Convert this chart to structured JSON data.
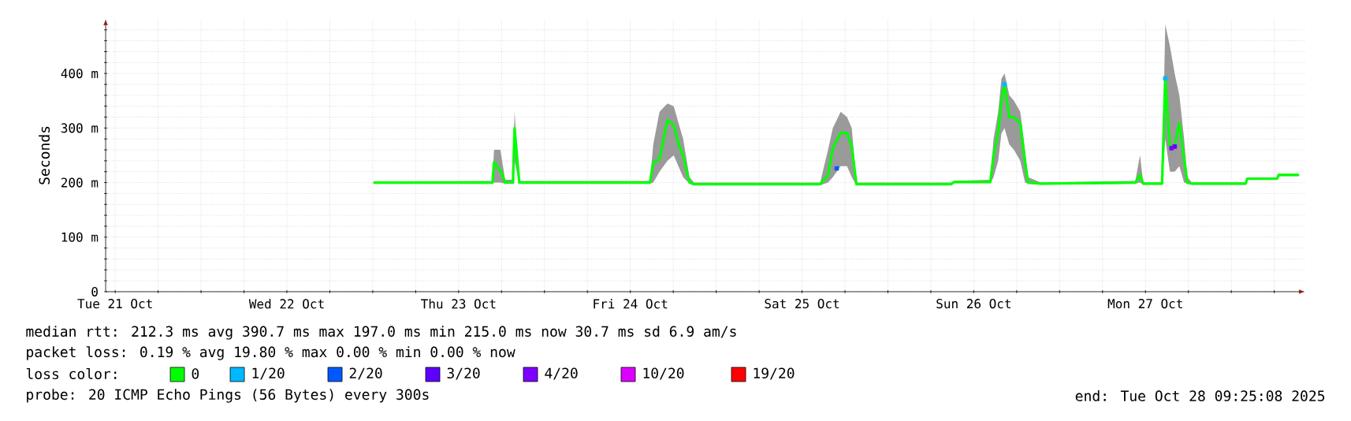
{
  "chart_data": {
    "type": "line",
    "ylabel": "Seconds",
    "legend_title": "loss color:",
    "legend": "bottom",
    "grid": true,
    "xlim": [
      "2025-10-21T10:40",
      "2025-10-28T10:20"
    ],
    "xticks": [
      {
        "value": "2025-10-21T12:00",
        "label": "Tue 21 Oct"
      },
      {
        "value": "2025-10-21T18:00",
        "label": null
      },
      {
        "value": "2025-10-22T00:00",
        "label": null
      },
      {
        "value": "2025-10-22T06:00",
        "label": null
      },
      {
        "value": "2025-10-22T12:00",
        "label": "Wed 22 Oct"
      },
      {
        "value": "2025-10-22T18:00",
        "label": null
      },
      {
        "value": "2025-10-23T00:00",
        "label": null
      },
      {
        "value": "2025-10-23T06:00",
        "label": null
      },
      {
        "value": "2025-10-23T12:00",
        "label": "Thu 23 Oct"
      },
      {
        "value": "2025-10-23T18:00",
        "label": null
      },
      {
        "value": "2025-10-24T00:00",
        "label": null
      },
      {
        "value": "2025-10-24T06:00",
        "label": null
      },
      {
        "value": "2025-10-24T12:00",
        "label": "Fri 24 Oct"
      },
      {
        "value": "2025-10-24T18:00",
        "label": null
      },
      {
        "value": "2025-10-25T00:00",
        "label": null
      },
      {
        "value": "2025-10-25T06:00",
        "label": null
      },
      {
        "value": "2025-10-25T12:00",
        "label": "Sat 25 Oct"
      },
      {
        "value": "2025-10-25T18:00",
        "label": null
      },
      {
        "value": "2025-10-26T00:00",
        "label": null
      },
      {
        "value": "2025-10-26T06:00",
        "label": null
      },
      {
        "value": "2025-10-26T12:00",
        "label": "Sun 26 Oct"
      },
      {
        "value": "2025-10-26T18:00",
        "label": null
      },
      {
        "value": "2025-10-27T00:00",
        "label": null
      },
      {
        "value": "2025-10-27T06:00",
        "label": null
      },
      {
        "value": "2025-10-27T12:00",
        "label": "Mon 27 Oct"
      },
      {
        "value": "2025-10-27T18:00",
        "label": null
      },
      {
        "value": "2025-10-28T00:00",
        "label": null
      },
      {
        "value": "2025-10-28T06:00",
        "label": null
      }
    ],
    "ylim": [
      0,
      500
    ],
    "yticks": [
      0,
      {
        "value": 20,
        "label": null
      },
      {
        "value": 40,
        "label": null
      },
      {
        "value": 60,
        "label": null
      },
      {
        "value": 80,
        "label": null
      },
      {
        "value": 100,
        "label": "100 m"
      },
      {
        "value": 120,
        "label": null
      },
      {
        "value": 140,
        "label": null
      },
      {
        "value": 160,
        "label": null
      },
      {
        "value": 180,
        "label": null
      },
      {
        "value": 200,
        "label": "200 m"
      },
      {
        "value": 220,
        "label": null
      },
      {
        "value": 240,
        "label": null
      },
      {
        "value": 260,
        "label": null
      },
      {
        "value": 280,
        "label": null
      },
      {
        "value": 300,
        "label": "300 m"
      },
      {
        "value": 320,
        "label": null
      },
      {
        "value": 340,
        "label": null
      },
      {
        "value": 360,
        "label": null
      },
      {
        "value": 380,
        "label": null
      },
      {
        "value": 400,
        "label": "400 m"
      },
      {
        "value": 420,
        "label": null
      },
      {
        "value": 440,
        "label": null
      },
      {
        "value": 460,
        "label": null
      },
      {
        "value": 480,
        "label": null
      }
    ],
    "series": [
      {
        "name": "0",
        "color": "#00ff00",
        "marker": "none",
        "x": [
          "2025-10-23T00:13",
          "2025-10-23T16:44",
          "2025-10-23T16:57",
          "2025-10-23T17:50",
          "2025-10-23T18:30",
          "2025-10-23T19:36",
          "2025-10-23T19:49",
          "2025-10-23T20:29",
          "2025-10-24T14:45",
          "2025-10-24T15:12",
          "2025-10-24T16:05",
          "2025-10-24T17:11",
          "2025-10-24T18:04",
          "2025-10-24T18:43",
          "2025-10-24T19:23",
          "2025-10-24T20:16",
          "2025-10-24T20:55",
          "2025-10-25T14:32",
          "2025-10-25T15:38",
          "2025-10-25T16:18",
          "2025-10-25T17:24",
          "2025-10-25T18:17",
          "2025-10-25T18:57",
          "2025-10-25T19:36",
          "2025-10-26T08:49",
          "2025-10-26T09:15",
          "2025-10-26T14:19",
          "2025-10-26T14:46",
          "2025-10-26T15:25",
          "2025-10-26T15:52",
          "2025-10-26T16:18",
          "2025-10-26T16:58",
          "2025-10-26T17:37",
          "2025-10-26T18:30",
          "2025-10-26T19:10",
          "2025-10-26T19:36",
          "2025-10-26T21:22",
          "2025-10-27T10:35",
          "2025-10-27T11:14",
          "2025-10-27T11:41",
          "2025-10-27T14:19",
          "2025-10-27T14:46",
          "2025-10-27T15:25",
          "2025-10-27T16:05",
          "2025-10-27T16:44",
          "2025-10-27T17:24",
          "2025-10-27T17:51",
          "2025-10-27T18:30",
          "2025-10-28T02:00",
          "2025-10-28T02:13",
          "2025-10-28T06:24",
          "2025-10-28T06:37",
          "2025-10-28T09:20"
        ],
        "values": [
          200,
          200,
          237,
          223,
          200,
          200,
          300,
          200,
          200,
          237,
          243,
          314,
          306,
          271,
          249,
          200,
          197,
          197,
          214,
          263,
          291,
          291,
          266,
          197,
          197,
          201,
          201,
          251,
          291,
          351,
          380,
          320,
          320,
          309,
          237,
          200,
          198,
          200,
          214,
          198,
          198,
          391,
          266,
          266,
          309,
          243,
          200,
          198,
          198,
          207,
          207,
          214,
          214
        ],
        "lower": [
          198,
          198,
          200,
          200,
          198,
          198,
          240,
          198,
          198,
          200,
          220,
          240,
          250,
          230,
          210,
          198,
          195,
          195,
          200,
          210,
          230,
          230,
          210,
          195,
          195,
          199,
          199,
          210,
          240,
          290,
          300,
          270,
          260,
          240,
          200,
          198,
          196,
          198,
          200,
          196,
          196,
          280,
          220,
          220,
          230,
          200,
          198,
          196,
          196,
          205,
          205,
          212,
          212
        ],
        "upper": [
          202,
          203,
          260,
          260,
          205,
          205,
          330,
          203,
          203,
          270,
          330,
          345,
          340,
          310,
          280,
          210,
          200,
          200,
          260,
          300,
          330,
          320,
          300,
          200,
          200,
          203,
          205,
          280,
          330,
          390,
          400,
          360,
          350,
          330,
          260,
          210,
          200,
          203,
          250,
          200,
          200,
          490,
          450,
          400,
          360,
          280,
          210,
          200,
          200,
          209,
          209,
          216,
          216
        ]
      },
      {
        "name": "1/20",
        "color": "#00b8ff",
        "type": "scatter",
        "marker": "square",
        "x": [
          "2025-10-26T16:18",
          "2025-10-27T14:46"
        ],
        "values": [
          380,
          391
        ]
      },
      {
        "name": "2/20",
        "color": "#0059ff",
        "type": "scatter",
        "marker": "square",
        "x": [
          "2025-10-25T16:51"
        ],
        "values": [
          226
        ]
      },
      {
        "name": "3/20",
        "color": "#5e00ff",
        "type": "scatter",
        "marker": "square",
        "x": [
          "2025-10-27T16:05"
        ],
        "values": [
          266
        ]
      },
      {
        "name": "4/20",
        "color": "#7e00ff",
        "type": "scatter",
        "marker": "square",
        "x": [
          "2025-10-27T15:38"
        ],
        "values": [
          263
        ]
      },
      {
        "name": "10/20",
        "color": "#dd00ff",
        "type": "scatter",
        "marker": "square"
      },
      {
        "name": "19/20",
        "color": "#ff0000",
        "type": "scatter",
        "marker": "square"
      }
    ],
    "annotations": [
      "median rtt:  212.3 ms avg  390.7 ms max  197.0 ms min  215.0 ms now  30.7 ms sd  6.9   am/s",
      "packet loss: 0.19 % avg  19.80 % max  0.00 % min  0.00 % now",
      "probe:       20 ICMP Echo Pings (56 Bytes) every 300s",
      "end: Tue Oct 28 09:25:08 2025"
    ]
  }
}
